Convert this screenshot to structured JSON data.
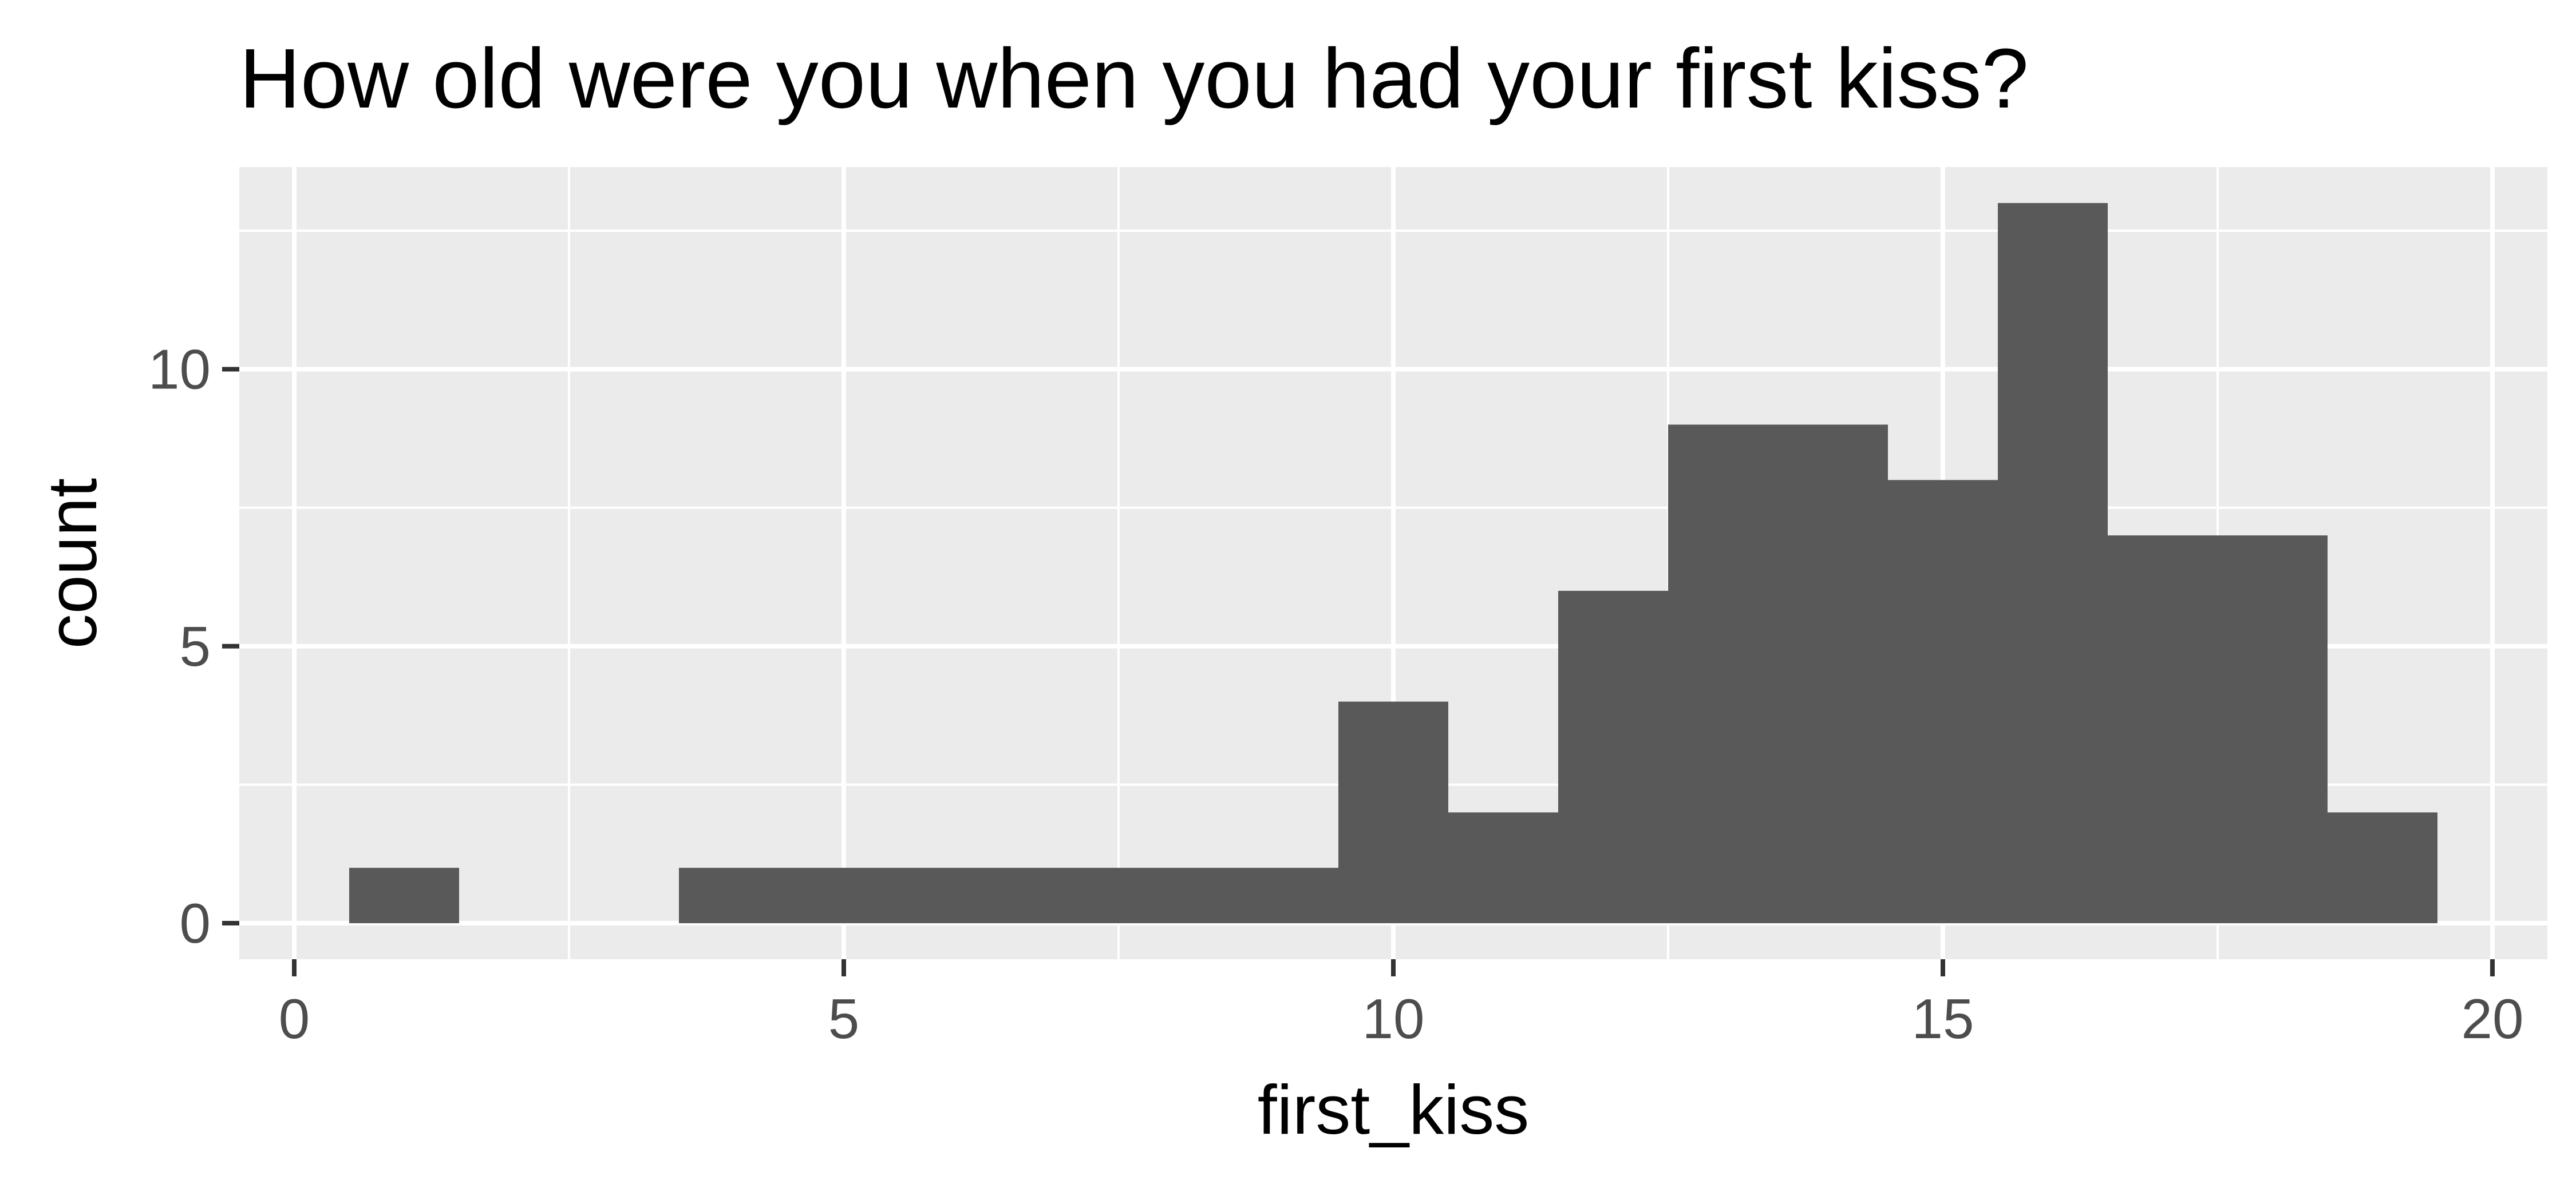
{
  "chart_data": {
    "type": "bar",
    "title": "How old were you when you had your first kiss?",
    "xlabel": "first_kiss",
    "ylabel": "count",
    "xlim": [
      -0.5,
      20.5
    ],
    "ylim": [
      -0.65,
      13.65
    ],
    "x_ticks": [
      0,
      5,
      10,
      15,
      20
    ],
    "y_ticks": [
      0,
      5,
      10
    ],
    "x_tick_labels": [
      "0",
      "5",
      "10",
      "15",
      "20"
    ],
    "y_tick_labels": [
      "0",
      "5",
      "10"
    ],
    "bin_width": 1,
    "bins": [
      {
        "x": 1,
        "count": 1
      },
      {
        "x": 2,
        "count": 0
      },
      {
        "x": 3,
        "count": 0
      },
      {
        "x": 4,
        "count": 1
      },
      {
        "x": 5,
        "count": 1
      },
      {
        "x": 6,
        "count": 1
      },
      {
        "x": 7,
        "count": 1
      },
      {
        "x": 8,
        "count": 1
      },
      {
        "x": 9,
        "count": 1
      },
      {
        "x": 10,
        "count": 4
      },
      {
        "x": 11,
        "count": 2
      },
      {
        "x": 12,
        "count": 6
      },
      {
        "x": 13,
        "count": 9
      },
      {
        "x": 14,
        "count": 9
      },
      {
        "x": 15,
        "count": 8
      },
      {
        "x": 16,
        "count": 13
      },
      {
        "x": 17,
        "count": 7
      },
      {
        "x": 18,
        "count": 7
      },
      {
        "x": 19,
        "count": 2
      }
    ],
    "grid": true,
    "colors": {
      "bar": "#595959",
      "panel": "#ebebeb",
      "grid": "#ffffff",
      "tick": "#333333"
    }
  }
}
